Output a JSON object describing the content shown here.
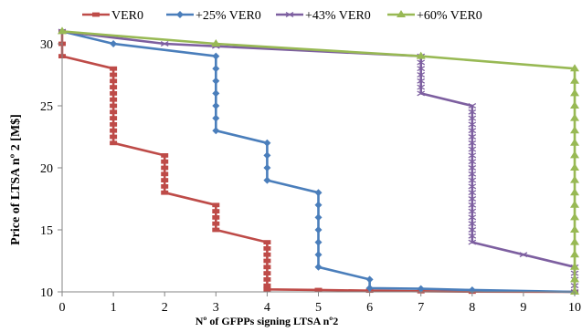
{
  "chart_data": {
    "type": "line",
    "title": "",
    "xlabel": "Nº of GFPPs signing LTSA nº2",
    "ylabel": "Price of LTSA nº 2 [M$]",
    "xlim": [
      0,
      10
    ],
    "ylim": [
      10,
      30
    ],
    "xticks": [
      0,
      1,
      2,
      3,
      4,
      5,
      6,
      7,
      8,
      9,
      10
    ],
    "yticks": [
      10,
      15,
      20,
      25,
      30
    ],
    "grid": false,
    "legend_position": "top",
    "series": [
      {
        "name": "VER0",
        "color": "#be4b48",
        "marker": "square",
        "points": [
          [
            0,
            31
          ],
          [
            0,
            30
          ],
          [
            0,
            29
          ],
          [
            1,
            28
          ],
          [
            1,
            27.5
          ],
          [
            1,
            27
          ],
          [
            1,
            26.5
          ],
          [
            1,
            26
          ],
          [
            1,
            25.5
          ],
          [
            1,
            25
          ],
          [
            1,
            24.5
          ],
          [
            1,
            24
          ],
          [
            1,
            23.5
          ],
          [
            1,
            23
          ],
          [
            1,
            22.5
          ],
          [
            1,
            22
          ],
          [
            2,
            21
          ],
          [
            2,
            20.5
          ],
          [
            2,
            20
          ],
          [
            2,
            19.5
          ],
          [
            2,
            19
          ],
          [
            2,
            18.5
          ],
          [
            2,
            18
          ],
          [
            3,
            17
          ],
          [
            3,
            16.5
          ],
          [
            3,
            16
          ],
          [
            3,
            15.5
          ],
          [
            3,
            15
          ],
          [
            4,
            14
          ],
          [
            4,
            13.5
          ],
          [
            4,
            13
          ],
          [
            4,
            12.5
          ],
          [
            4,
            12
          ],
          [
            4,
            11.5
          ],
          [
            4,
            11
          ],
          [
            4,
            10.5
          ],
          [
            4,
            10.2
          ],
          [
            5,
            10.15
          ],
          [
            6,
            10.1
          ],
          [
            7,
            10.05
          ],
          [
            8,
            10.02
          ],
          [
            10,
            10
          ]
        ]
      },
      {
        "name": "+25% VER0",
        "color": "#4a7ebb",
        "marker": "diamond",
        "points": [
          [
            0,
            31
          ],
          [
            1,
            30
          ],
          [
            3,
            29
          ],
          [
            3,
            28
          ],
          [
            3,
            27
          ],
          [
            3,
            26
          ],
          [
            3,
            25
          ],
          [
            3,
            24
          ],
          [
            3,
            23
          ],
          [
            4,
            22
          ],
          [
            4,
            21
          ],
          [
            4,
            20
          ],
          [
            4,
            19
          ],
          [
            5,
            18
          ],
          [
            5,
            17
          ],
          [
            5,
            16
          ],
          [
            5,
            15
          ],
          [
            5,
            14
          ],
          [
            5,
            13
          ],
          [
            5,
            12
          ],
          [
            6,
            11
          ],
          [
            6,
            10.3
          ],
          [
            7,
            10.25
          ],
          [
            8,
            10.15
          ],
          [
            10,
            10
          ]
        ]
      },
      {
        "name": "+43% VER0",
        "color": "#7d5fa0",
        "marker": "x",
        "points": [
          [
            0,
            31
          ],
          [
            2,
            30
          ],
          [
            3,
            29.8
          ],
          [
            7,
            29
          ],
          [
            7,
            28.5
          ],
          [
            7,
            28
          ],
          [
            7,
            27.5
          ],
          [
            7,
            27
          ],
          [
            7,
            26.5
          ],
          [
            7,
            26
          ],
          [
            8,
            25
          ],
          [
            8,
            24.5
          ],
          [
            8,
            24
          ],
          [
            8,
            23.5
          ],
          [
            8,
            23
          ],
          [
            8,
            22.5
          ],
          [
            8,
            22
          ],
          [
            8,
            21.5
          ],
          [
            8,
            21
          ],
          [
            8,
            20.5
          ],
          [
            8,
            20
          ],
          [
            8,
            19.5
          ],
          [
            8,
            19
          ],
          [
            8,
            18.5
          ],
          [
            8,
            18
          ],
          [
            8,
            17.5
          ],
          [
            8,
            17
          ],
          [
            8,
            16.5
          ],
          [
            8,
            16
          ],
          [
            8,
            15.5
          ],
          [
            8,
            15
          ],
          [
            8,
            14.5
          ],
          [
            8,
            14
          ],
          [
            9,
            13
          ],
          [
            10,
            12
          ],
          [
            10,
            11.5
          ],
          [
            10,
            11
          ],
          [
            10,
            10.5
          ],
          [
            10,
            10
          ]
        ]
      },
      {
        "name": "+60% VER0",
        "color": "#98b954",
        "marker": "triangle",
        "points": [
          [
            0,
            31
          ],
          [
            3,
            30
          ],
          [
            7,
            29
          ],
          [
            10,
            28
          ],
          [
            10,
            27
          ],
          [
            10,
            26
          ],
          [
            10,
            25
          ],
          [
            10,
            24
          ],
          [
            10,
            23
          ],
          [
            10,
            22
          ],
          [
            10,
            21
          ],
          [
            10,
            20
          ],
          [
            10,
            19
          ],
          [
            10,
            18
          ],
          [
            10,
            17
          ],
          [
            10,
            16
          ],
          [
            10,
            15
          ],
          [
            10,
            14
          ],
          [
            10,
            13
          ],
          [
            10,
            12
          ],
          [
            10,
            11
          ],
          [
            10,
            10
          ]
        ]
      }
    ]
  }
}
